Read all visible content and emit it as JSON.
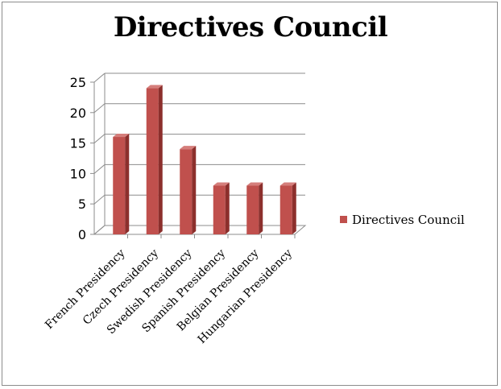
{
  "chart_data": {
    "type": "bar",
    "title": "Directives Council",
    "categories": [
      "French Presidency",
      "Czech Presidency",
      "Swedish Presidency",
      "Spanish Presidency",
      "Belgian  Presidency",
      "Hungarian Presidency"
    ],
    "series": [
      {
        "name": "Directives Council",
        "values": [
          16,
          24,
          14,
          8,
          8,
          8
        ],
        "color": "#c0504d"
      }
    ],
    "ylim": [
      0,
      25
    ],
    "yticks": [
      0,
      5,
      10,
      15,
      20,
      25
    ],
    "grid": true,
    "legend": "right",
    "style": "3d-column"
  }
}
